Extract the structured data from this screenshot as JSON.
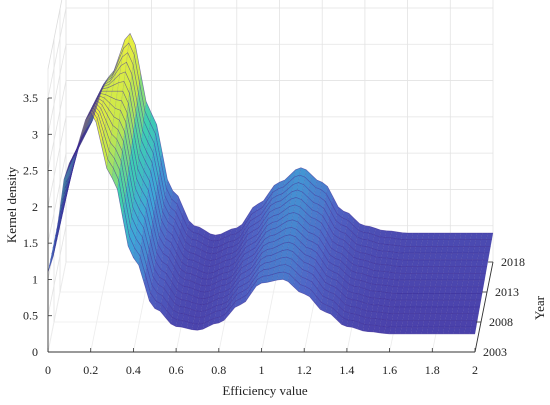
{
  "chart_data": {
    "type": "surface3d",
    "title": "",
    "xlabel": "Efficiency value",
    "ylabel": "Year",
    "zlabel": "Kernel density",
    "xlim": [
      0,
      2
    ],
    "zlim": [
      0,
      3.5
    ],
    "x_ticks": [
      "0",
      "0.2",
      "0.4",
      "0.6",
      "0.8",
      "1",
      "1.2",
      "1.4",
      "1.6",
      "1.8",
      "2"
    ],
    "z_ticks": [
      "0",
      "0.5",
      "1",
      "1.5",
      "2",
      "2.5",
      "3",
      "3.5"
    ],
    "year_ticks": [
      "2003",
      "2008",
      "2013",
      "2018"
    ],
    "years": [
      2003,
      2004,
      2005,
      2006,
      2007,
      2008,
      2009,
      2010,
      2011,
      2012,
      2013,
      2014,
      2015,
      2016,
      2017,
      2018
    ],
    "x": [
      0.0,
      0.1,
      0.2,
      0.3,
      0.4,
      0.5,
      0.6,
      0.7,
      0.8,
      0.9,
      1.0,
      1.1,
      1.2,
      1.3,
      1.4,
      1.5,
      1.6,
      1.7,
      1.8,
      1.9,
      2.0
    ],
    "series": [
      {
        "values": [
          1.1,
          2.6,
          3.3,
          2.4,
          1.3,
          0.6,
          0.35,
          0.3,
          0.4,
          0.65,
          0.95,
          1.0,
          0.8,
          0.55,
          0.35,
          0.28,
          0.25,
          0.25,
          0.25,
          0.25,
          0.25
        ]
      },
      {
        "values": [
          1.1,
          2.55,
          3.25,
          2.45,
          1.35,
          0.62,
          0.36,
          0.3,
          0.4,
          0.66,
          0.96,
          1.02,
          0.82,
          0.56,
          0.36,
          0.29,
          0.26,
          0.26,
          0.26,
          0.26,
          0.26
        ]
      },
      {
        "values": [
          1.1,
          2.5,
          3.2,
          2.5,
          1.4,
          0.65,
          0.37,
          0.31,
          0.41,
          0.67,
          0.97,
          1.04,
          0.84,
          0.57,
          0.37,
          0.3,
          0.27,
          0.27,
          0.27,
          0.27,
          0.27
        ]
      },
      {
        "values": [
          1.1,
          2.45,
          3.15,
          2.55,
          1.45,
          0.68,
          0.38,
          0.31,
          0.41,
          0.68,
          0.98,
          1.06,
          0.86,
          0.58,
          0.38,
          0.31,
          0.28,
          0.28,
          0.28,
          0.28,
          0.28
        ]
      },
      {
        "values": [
          1.1,
          2.4,
          3.1,
          2.6,
          1.5,
          0.7,
          0.39,
          0.32,
          0.42,
          0.69,
          0.99,
          1.08,
          0.88,
          0.59,
          0.39,
          0.32,
          0.29,
          0.29,
          0.29,
          0.29,
          0.29
        ]
      },
      {
        "values": [
          1.1,
          2.35,
          3.05,
          2.65,
          1.55,
          0.72,
          0.4,
          0.32,
          0.42,
          0.7,
          1.0,
          1.1,
          0.9,
          0.6,
          0.4,
          0.33,
          0.3,
          0.3,
          0.3,
          0.3,
          0.3
        ]
      },
      {
        "values": [
          1.1,
          2.3,
          3.0,
          2.7,
          1.6,
          0.75,
          0.41,
          0.33,
          0.43,
          0.71,
          1.01,
          1.12,
          0.92,
          0.61,
          0.41,
          0.34,
          0.31,
          0.31,
          0.31,
          0.31,
          0.31
        ]
      },
      {
        "values": [
          1.1,
          2.25,
          2.95,
          2.75,
          1.65,
          0.78,
          0.42,
          0.33,
          0.43,
          0.72,
          1.02,
          1.14,
          0.94,
          0.62,
          0.42,
          0.35,
          0.32,
          0.32,
          0.32,
          0.32,
          0.32
        ]
      },
      {
        "values": [
          1.1,
          2.2,
          2.9,
          2.8,
          1.7,
          0.8,
          0.43,
          0.34,
          0.44,
          0.73,
          1.03,
          1.16,
          0.96,
          0.63,
          0.43,
          0.36,
          0.33,
          0.33,
          0.33,
          0.33,
          0.33
        ]
      },
      {
        "values": [
          1.1,
          2.15,
          2.85,
          2.85,
          1.75,
          0.82,
          0.44,
          0.34,
          0.44,
          0.74,
          1.04,
          1.18,
          0.98,
          0.64,
          0.44,
          0.37,
          0.34,
          0.34,
          0.34,
          0.34,
          0.34
        ]
      },
      {
        "values": [
          1.1,
          2.1,
          2.8,
          2.9,
          1.8,
          0.85,
          0.45,
          0.35,
          0.45,
          0.75,
          1.05,
          1.2,
          1.0,
          0.65,
          0.45,
          0.38,
          0.35,
          0.35,
          0.35,
          0.35,
          0.35
        ]
      },
      {
        "values": [
          1.1,
          2.05,
          2.75,
          2.95,
          1.85,
          0.88,
          0.46,
          0.35,
          0.45,
          0.76,
          1.06,
          1.22,
          1.02,
          0.66,
          0.46,
          0.39,
          0.36,
          0.36,
          0.36,
          0.36,
          0.36
        ]
      },
      {
        "values": [
          1.1,
          2.0,
          2.7,
          3.0,
          1.9,
          0.9,
          0.47,
          0.36,
          0.46,
          0.77,
          1.07,
          1.24,
          1.04,
          0.67,
          0.47,
          0.4,
          0.37,
          0.37,
          0.37,
          0.37,
          0.37
        ]
      },
      {
        "values": [
          1.1,
          1.95,
          2.65,
          3.05,
          1.95,
          0.92,
          0.48,
          0.36,
          0.46,
          0.78,
          1.08,
          1.26,
          1.06,
          0.68,
          0.48,
          0.41,
          0.38,
          0.38,
          0.38,
          0.38,
          0.38
        ]
      },
      {
        "values": [
          1.1,
          1.9,
          2.6,
          3.1,
          2.0,
          0.95,
          0.49,
          0.37,
          0.47,
          0.79,
          1.09,
          1.28,
          1.08,
          0.69,
          0.49,
          0.42,
          0.39,
          0.39,
          0.39,
          0.39,
          0.39
        ]
      },
      {
        "values": [
          1.1,
          1.85,
          2.55,
          3.15,
          2.05,
          0.98,
          0.5,
          0.37,
          0.47,
          0.8,
          1.1,
          1.3,
          1.1,
          0.7,
          0.5,
          0.43,
          0.4,
          0.4,
          0.4,
          0.4,
          0.4
        ]
      }
    ],
    "colormap": [
      "#4a3ea8",
      "#4f66c6",
      "#3fa6d8",
      "#3fd0b0",
      "#c7e84a",
      "#f8f23c"
    ],
    "grid": true,
    "legend": "none"
  }
}
